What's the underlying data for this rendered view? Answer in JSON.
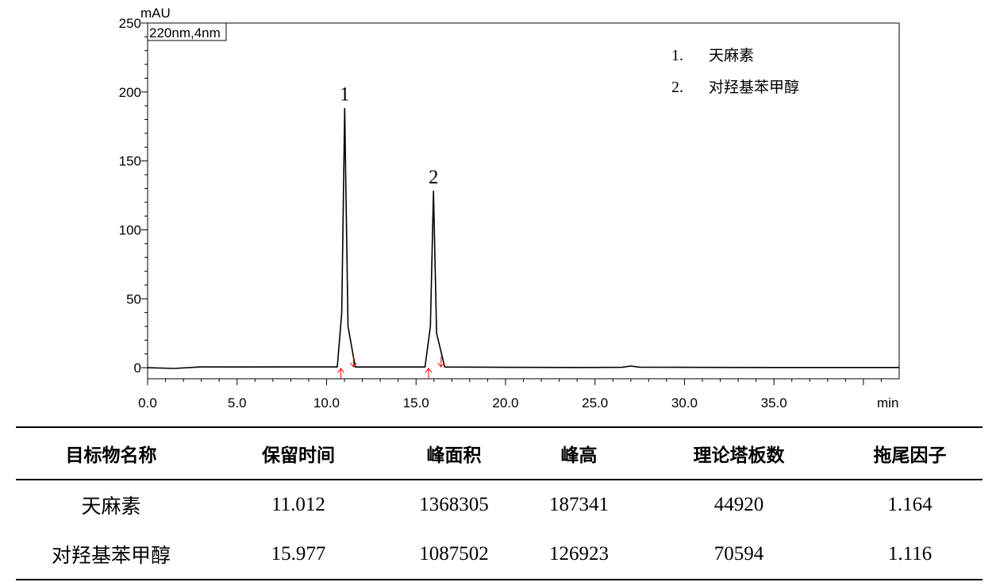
{
  "chart_data": {
    "type": "line",
    "ylabel": "mAU",
    "xlabel": "min",
    "channel_label": "220nm,4nm",
    "xlim": [
      0,
      42
    ],
    "ylim": [
      -8,
      250
    ],
    "x_ticks": [
      "0.0",
      "5.0",
      "10.0",
      "15.0",
      "20.0",
      "25.0",
      "30.0",
      "35.0"
    ],
    "x_tick_values": [
      0,
      5,
      10,
      15,
      20,
      25,
      30,
      35
    ],
    "y_ticks": [
      "0",
      "50",
      "100",
      "150",
      "200",
      "250"
    ],
    "y_tick_values": [
      0,
      50,
      100,
      150,
      200,
      250
    ],
    "series": [
      {
        "x": [
          0,
          1.5,
          3,
          5,
          8,
          10.6,
          10.85,
          11.012,
          11.2,
          11.6,
          15.5,
          15.8,
          15.977,
          16.15,
          16.6,
          20,
          24,
          26.5,
          27,
          27.5,
          30,
          35,
          42
        ],
        "y": [
          0,
          -0.5,
          0.6,
          0.5,
          0.6,
          0.6,
          40,
          188,
          30,
          0.5,
          0.5,
          30,
          128,
          25,
          0.5,
          0.3,
          0.2,
          0.3,
          1.2,
          0.4,
          0.3,
          0.2,
          0.2
        ]
      }
    ],
    "peaks": [
      {
        "label": "1",
        "x": 11.012,
        "y": 188,
        "start": 10.8,
        "end": 11.5
      },
      {
        "label": "2",
        "x": 15.977,
        "y": 128,
        "start": 15.7,
        "end": 16.4
      }
    ],
    "legend": [
      {
        "num": "1.",
        "name": "天麻素"
      },
      {
        "num": "2.",
        "name": "对羟基苯甲醇"
      }
    ],
    "marker_color": "#ff0000",
    "line_color": "#000000"
  },
  "table": {
    "headers": [
      "目标物名称",
      "保留时间",
      "峰面积",
      "峰高",
      "理论塔板数",
      "拖尾因子"
    ],
    "rows": [
      [
        "天麻素",
        "11.012",
        "1368305",
        "187341",
        "44920",
        "1.164"
      ],
      [
        "对羟基苯甲醇",
        "15.977",
        "1087502",
        "126923",
        "70594",
        "1.116"
      ]
    ]
  }
}
